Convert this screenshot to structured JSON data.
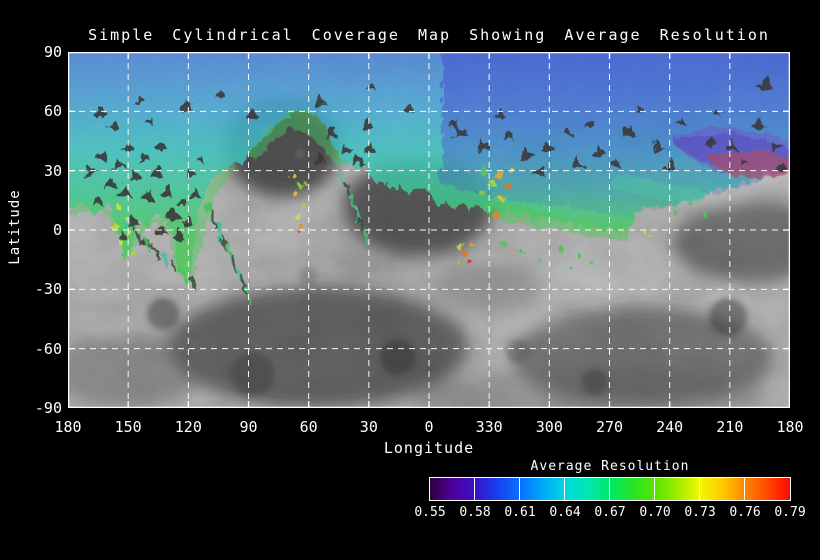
{
  "window": {
    "background": "#000000"
  },
  "title": "Simple Cylindrical Coverage Map Showing Average Resolution",
  "axes": {
    "xlabel": "Longitude",
    "ylabel": "Latitude",
    "x_ticks": [
      "180",
      "150",
      "120",
      "90",
      "60",
      "30",
      "0",
      "330",
      "300",
      "270",
      "240",
      "210",
      "180"
    ],
    "y_ticks": [
      "90",
      "60",
      "30",
      "0",
      "-30",
      "-60",
      "-90"
    ]
  },
  "colorbar": {
    "title": "Average Resolution",
    "tick_labels": [
      "0.55",
      "0.58",
      "0.61",
      "0.64",
      "0.67",
      "0.70",
      "0.73",
      "0.76",
      "0.79"
    ],
    "min": 0.55,
    "max": 0.79,
    "step": 0.03,
    "colors": [
      "#30003e",
      "#50009e",
      "#3a10c8",
      "#1840f0",
      "#0a70ff",
      "#00a8f8",
      "#00d8e0",
      "#00e8b0",
      "#00e868",
      "#28e428",
      "#58e400",
      "#a0ec00",
      "#f0f800",
      "#ffc800",
      "#ff8400",
      "#ff4800",
      "#ff0800"
    ]
  },
  "chart_data": {
    "type": "heatmap",
    "title": "Simple Cylindrical Coverage Map Showing Average Resolution",
    "xlabel": "Longitude",
    "ylabel": "Latitude",
    "x_tick_values": [
      180,
      150,
      120,
      90,
      60,
      30,
      0,
      330,
      300,
      270,
      240,
      210,
      180
    ],
    "y_tick_values": [
      90,
      60,
      30,
      0,
      -30,
      -60,
      -90
    ],
    "value_label": "Average Resolution",
    "value_range": [
      0.55,
      0.79
    ],
    "gridlines": {
      "interval_deg": 30,
      "style": "dashed white"
    },
    "background": "grayscale planetary surface mosaic (no coverage = gray terrain)",
    "coverage_regions": [
      {
        "lat": [
          60,
          90
        ],
        "lon": "all longitudes",
        "avg_resolution": 0.58,
        "color": "blue"
      },
      {
        "lat": [
          25,
          60
        ],
        "lon": [
          180,
          60
        ],
        "avg_resolution": 0.63,
        "color": "cyan-teal"
      },
      {
        "lat": [
          25,
          60
        ],
        "lon": [
          355,
          185
        ],
        "avg_resolution": 0.59,
        "color": "blue"
      },
      {
        "lat": [
          -5,
          30
        ],
        "lon": [
          180,
          120
        ],
        "avg_resolution": 0.67,
        "color": "green with yellow flecks, dark gap triangles"
      },
      {
        "lat": [
          0,
          15
        ],
        "lon": [
          68,
          58
        ],
        "avg_resolution": 0.71,
        "color": "yellow-green fleck cluster"
      },
      {
        "lat": [
          0,
          30
        ],
        "lon": [
          335,
          290
        ],
        "avg_resolution": 0.68,
        "color": "green with orange patches"
      },
      {
        "lat": [
          -20,
          -5
        ],
        "lon": [
          325,
          318
        ],
        "avg_resolution": 0.76,
        "color": "yellow-orange-red streak"
      },
      {
        "lat": [
          22,
          35
        ],
        "lon": [
          215,
          182
        ],
        "avg_resolution": 0.56,
        "color": "indigo-purple patch with red-maroon fringe ~0.79"
      },
      {
        "lat": [
          55,
          25
        ],
        "lon": [
          95,
          55
        ],
        "avg_resolution": null,
        "color": "no coverage (gray mountain region)"
      }
    ]
  }
}
